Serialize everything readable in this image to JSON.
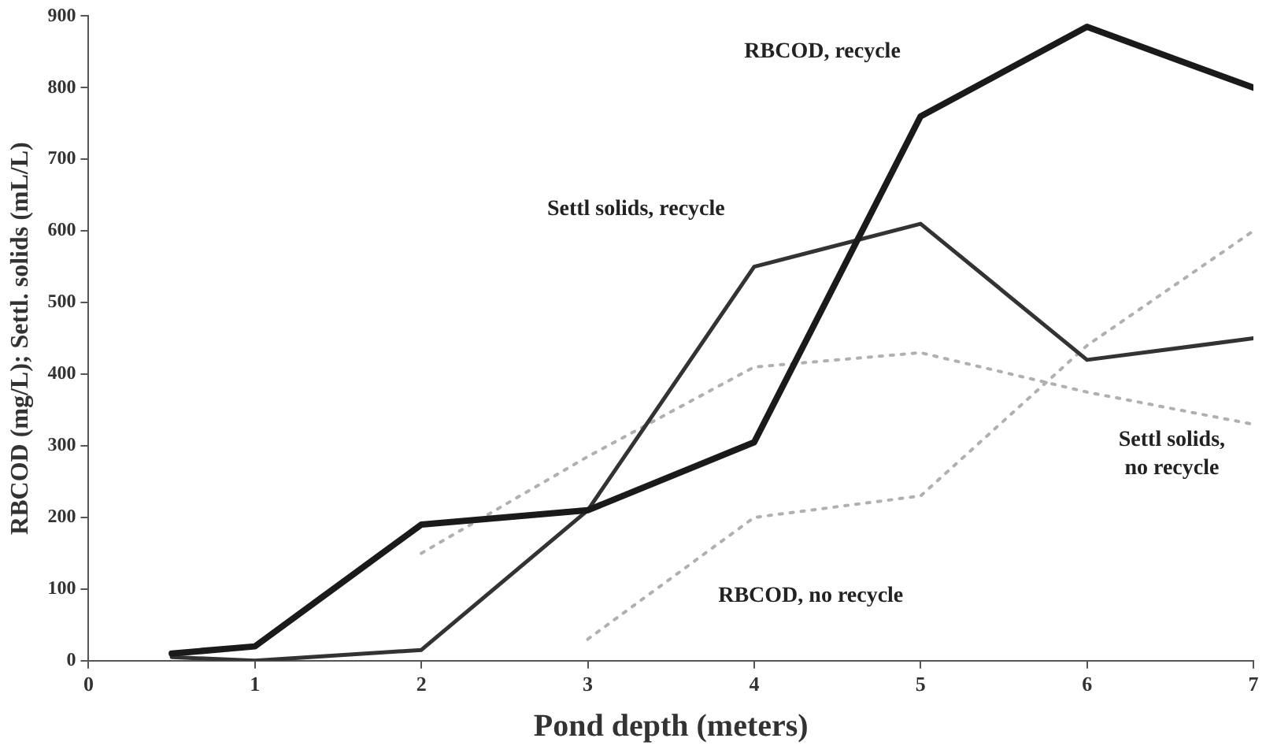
{
  "chart_data": {
    "type": "line",
    "xlabel": "Pond depth (meters)",
    "ylabel": "RBCOD (mg/L); Settl. solids (mL/L)",
    "xlim": [
      0,
      7
    ],
    "xticks": [
      0,
      1,
      2,
      3,
      4,
      5,
      6,
      7
    ],
    "ylim": [
      0,
      900
    ],
    "yticks": [
      0,
      100,
      200,
      300,
      400,
      500,
      600,
      700,
      800,
      900
    ],
    "grid": false,
    "legend": false,
    "series": [
      {
        "name": "RBCOD, recycle",
        "color": "#1a1a1a",
        "x": [
          0.5,
          1,
          2,
          3,
          4,
          5,
          6,
          7
        ],
        "values": [
          10,
          20,
          190,
          210,
          305,
          760,
          885,
          800
        ],
        "line_style": "solid"
      },
      {
        "name": "Settl solids, recycle",
        "color": "#333333",
        "x": [
          0.5,
          1,
          2,
          3,
          4,
          5,
          6,
          7
        ],
        "values": [
          5,
          0,
          15,
          210,
          550,
          610,
          420,
          450
        ],
        "line_style": "solid"
      },
      {
        "name": "Settl solids,\nno recycle",
        "color": "#b0b0b0",
        "x": [
          2,
          3,
          4,
          5,
          6,
          7
        ],
        "values": [
          150,
          285,
          410,
          430,
          375,
          330
        ],
        "line_style": "dotted"
      },
      {
        "name": "RBCOD, no recycle",
        "color": "#b0b0b0",
        "x": [
          3,
          4,
          5,
          6,
          7
        ],
        "values": [
          30,
          200,
          230,
          440,
          600
        ],
        "line_style": "dotted"
      }
    ]
  }
}
